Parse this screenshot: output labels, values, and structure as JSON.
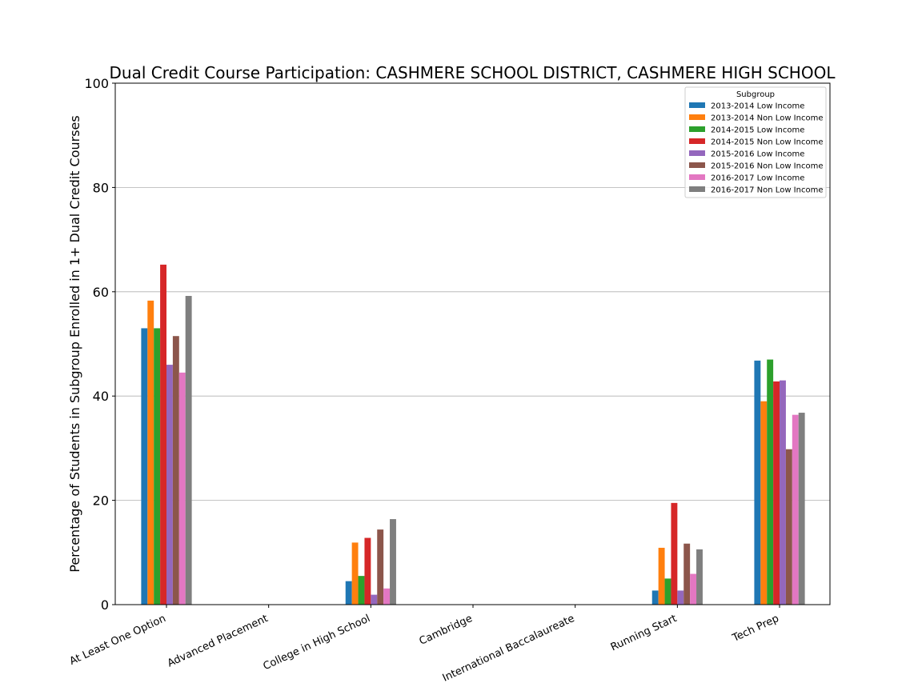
{
  "chart_data": {
    "type": "bar",
    "title": "Dual Credit Course Participation: CASHMERE SCHOOL DISTRICT, CASHMERE HIGH SCHOOL",
    "xlabel": "",
    "ylabel": "Percentage of Students in Subgroup Enrolled in 1+ Dual Credit Courses",
    "ylim": [
      0,
      100
    ],
    "yticks": [
      0,
      20,
      40,
      60,
      80,
      100
    ],
    "grid": "y",
    "legend": {
      "title": "Subgroup",
      "placement": "top-right"
    },
    "categories": [
      "At Least One Option",
      "Advanced Placement",
      "College in High School",
      "Cambridge",
      "International Baccalaureate",
      "Running Start",
      "Tech Prep"
    ],
    "series": [
      {
        "name": "2013-2014 Low Income",
        "color": "#1f77b4",
        "values": [
          53,
          0,
          4.5,
          0,
          0,
          2.7,
          46.8
        ]
      },
      {
        "name": "2013-2014 Non Low Income",
        "color": "#ff7f0e",
        "values": [
          58.3,
          0,
          11.9,
          0,
          0,
          10.9,
          39
        ]
      },
      {
        "name": "2014-2015 Low Income",
        "color": "#2ca02c",
        "values": [
          53,
          0,
          5.5,
          0,
          0,
          5,
          47
        ]
      },
      {
        "name": "2014-2015 Non Low Income",
        "color": "#d62728",
        "values": [
          65.2,
          0,
          12.8,
          0,
          0,
          19.5,
          42.8
        ]
      },
      {
        "name": "2015-2016 Low Income",
        "color": "#9467bd",
        "values": [
          46,
          0,
          1.9,
          0,
          0,
          2.7,
          43
        ]
      },
      {
        "name": "2015-2016 Non Low Income",
        "color": "#8c564b",
        "values": [
          51.5,
          0,
          14.4,
          0,
          0,
          11.7,
          29.8
        ]
      },
      {
        "name": "2016-2017 Low Income",
        "color": "#e377c2",
        "values": [
          44.5,
          0,
          3.1,
          0,
          0,
          5.9,
          36.4
        ]
      },
      {
        "name": "2016-2017 Non Low Income",
        "color": "#7f7f7f",
        "values": [
          59.2,
          0,
          16.4,
          0,
          0,
          10.6,
          36.8
        ]
      }
    ]
  }
}
